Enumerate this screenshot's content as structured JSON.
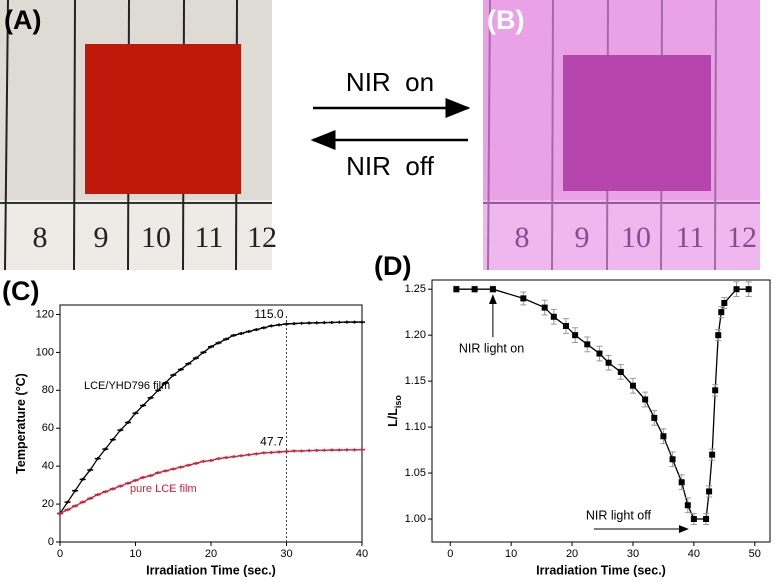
{
  "panels": {
    "a": {
      "label": "(A)",
      "ruler": [
        "8",
        "9",
        "10",
        "11",
        "12"
      ]
    },
    "b": {
      "label": "(B)",
      "ruler": [
        "8",
        "9",
        "10",
        "11",
        "12"
      ]
    }
  },
  "arrows": {
    "forward": "NIR  on",
    "backward": "NIR  off"
  },
  "chart_data": [
    {
      "type": "line",
      "panel_label": "(C)",
      "x_label": "Irradiation Time (sec.)",
      "y_label": "Temperature (°C)",
      "x": [
        0,
        1,
        2,
        3,
        4,
        5,
        6,
        7,
        8,
        9,
        10,
        11,
        12,
        13,
        14,
        15,
        16,
        17,
        18,
        19,
        20,
        21,
        22,
        23,
        24,
        25,
        26,
        27,
        28,
        29,
        30,
        31,
        32,
        33,
        34,
        35,
        36,
        37,
        38,
        39,
        40
      ],
      "series": [
        {
          "name": "LCE/YHD796 film",
          "color": "#000000",
          "values": [
            15,
            21,
            27,
            33,
            38,
            44,
            49,
            54,
            59,
            63,
            68,
            72,
            76,
            80,
            84,
            88,
            91,
            94,
            97,
            100,
            103,
            105,
            107,
            109,
            110,
            111,
            112,
            113,
            114,
            114.5,
            115,
            115.2,
            115.4,
            115.5,
            115.6,
            115.7,
            115.8,
            115.9,
            116,
            116,
            116
          ]
        },
        {
          "name": "pure LCE film",
          "color": "#d0203a",
          "values": [
            15,
            17,
            19,
            21,
            23,
            25,
            26.5,
            28,
            29.5,
            31,
            32.5,
            34,
            35,
            36.5,
            37.5,
            38.5,
            39.5,
            40.5,
            41.5,
            42.5,
            43,
            44,
            44.5,
            45,
            45.5,
            46,
            46.5,
            47,
            47.2,
            47.5,
            47.7,
            48,
            48,
            48.2,
            48.3,
            48.4,
            48.5,
            48.5,
            48.6,
            48.6,
            48.7
          ]
        }
      ],
      "annotations": [
        {
          "x": 30,
          "y": 115,
          "label": "115.0"
        },
        {
          "x": 30,
          "y": 47.7,
          "label": "47.7"
        }
      ],
      "vline": 30,
      "xlim": [
        0,
        40
      ],
      "xticks": [
        0,
        10,
        20,
        30,
        40
      ],
      "ylim": [
        0,
        125
      ],
      "yticks": [
        0,
        20,
        40,
        60,
        80,
        100,
        120
      ]
    },
    {
      "type": "line",
      "panel_label": "(D)",
      "x_label": "Irradiation Time (sec.)",
      "y_label": "L/L",
      "y_label_sub": "iso",
      "x": [
        1,
        4,
        7,
        12,
        15.5,
        17,
        19,
        20.5,
        22.5,
        24.5,
        26,
        28,
        30,
        32,
        33.5,
        35,
        36.5,
        38,
        39,
        40,
        42,
        42.5,
        43,
        43.5,
        44,
        44.5,
        45,
        47,
        49
      ],
      "series": [
        {
          "name": "L/Liso",
          "color": "#000000",
          "values": [
            1.25,
            1.25,
            1.25,
            1.24,
            1.23,
            1.22,
            1.21,
            1.2,
            1.19,
            1.18,
            1.17,
            1.16,
            1.145,
            1.13,
            1.11,
            1.09,
            1.065,
            1.04,
            1.015,
            1.0,
            1.0,
            1.03,
            1.07,
            1.14,
            1.2,
            1.225,
            1.235,
            1.25,
            1.25
          ],
          "errors": [
            0.003,
            0.003,
            0.003,
            0.007,
            0.008,
            0.008,
            0.008,
            0.008,
            0.008,
            0.008,
            0.008,
            0.008,
            0.008,
            0.008,
            0.008,
            0.008,
            0.008,
            0.008,
            0.008,
            0.006,
            0.006,
            0.006,
            0.006,
            0.006,
            0.006,
            0.006,
            0.006,
            0.008,
            0.008
          ]
        }
      ],
      "annotations": [
        {
          "x": 7,
          "y": 1.25,
          "label": "NIR light on"
        },
        {
          "x": 40,
          "y": 1.0,
          "label": "NIR light off"
        }
      ],
      "xlim": [
        -3,
        52.5
      ],
      "xticks": [
        0,
        10,
        20,
        30,
        40,
        50
      ],
      "ylim": [
        0.975,
        1.26
      ],
      "yticks": [
        {
          "value": 1.0,
          "label": "1.00"
        },
        {
          "value": 1.05,
          "label": "1.05"
        },
        {
          "value": 1.1,
          "label": "1.10"
        },
        {
          "value": 1.15,
          "label": "1.15"
        },
        {
          "value": 1.2,
          "label": "1.20"
        },
        {
          "value": 1.25,
          "label": "1.25"
        }
      ]
    }
  ]
}
